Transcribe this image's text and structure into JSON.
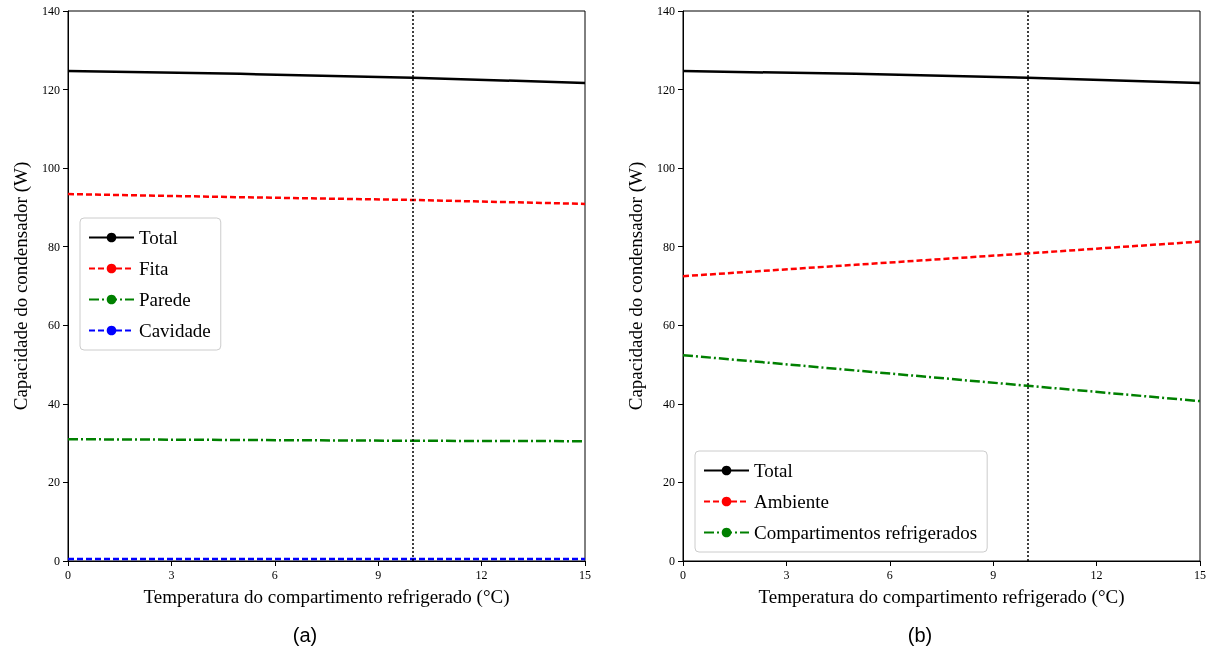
{
  "chart_data": [
    {
      "type": "line",
      "xlabel": "Temperatura do compartimento refrigerado (°C)",
      "ylabel": "Capacidade do condensador (W)",
      "annotations": [
        "(a)"
      ],
      "x": [
        0,
        5,
        10,
        15
      ],
      "xlim": [
        0,
        15
      ],
      "xticks": [
        0,
        3,
        6,
        9,
        12,
        15
      ],
      "ylim": [
        0,
        140
      ],
      "yticks": [
        0,
        20,
        40,
        60,
        80,
        100,
        120,
        140
      ],
      "grid": false,
      "legend": "center left",
      "marker": "none",
      "ref_lines": [
        {
          "axis": "x",
          "value": 10,
          "color": "#000000",
          "line_style": "dotted"
        }
      ],
      "series": [
        {
          "name": "Total",
          "color": "#000000",
          "line_style": "solid",
          "values": [
            124.7,
            124.0,
            123.0,
            121.7
          ]
        },
        {
          "name": "Fita",
          "color": "#ff0000",
          "line_style": "dashed",
          "values": [
            93.4,
            92.6,
            91.9,
            90.9
          ]
        },
        {
          "name": "Parede",
          "color": "#008000",
          "line_style": "dashdot",
          "values": [
            31.0,
            30.8,
            30.6,
            30.5
          ]
        },
        {
          "name": "Cavidade",
          "color": "#0000ff",
          "line_style": "dashed",
          "values": [
            0.5,
            0.5,
            0.5,
            0.5
          ]
        }
      ]
    },
    {
      "type": "line",
      "xlabel": "Temperatura do compartimento refrigerado (°C)",
      "ylabel": "Capacidade do condensador (W)",
      "annotations": [
        "(b)"
      ],
      "x": [
        0,
        5,
        10,
        15
      ],
      "xlim": [
        0,
        15
      ],
      "xticks": [
        0,
        3,
        6,
        9,
        12,
        15
      ],
      "ylim": [
        0,
        140
      ],
      "yticks": [
        0,
        20,
        40,
        60,
        80,
        100,
        120,
        140
      ],
      "grid": false,
      "legend": "bottom left",
      "marker": "none",
      "ref_lines": [
        {
          "axis": "x",
          "value": 10,
          "color": "#000000",
          "line_style": "dotted"
        }
      ],
      "series": [
        {
          "name": "Total",
          "color": "#000000",
          "line_style": "solid",
          "values": [
            124.7,
            124.0,
            123.0,
            121.7
          ]
        },
        {
          "name": "Ambiente",
          "color": "#ff0000",
          "line_style": "dashed",
          "values": [
            72.5,
            75.4,
            78.3,
            81.3
          ]
        },
        {
          "name": "Compartimentos refrigerados",
          "color": "#008000",
          "line_style": "dashdot",
          "values": [
            52.4,
            48.5,
            44.6,
            40.7
          ]
        }
      ]
    }
  ]
}
